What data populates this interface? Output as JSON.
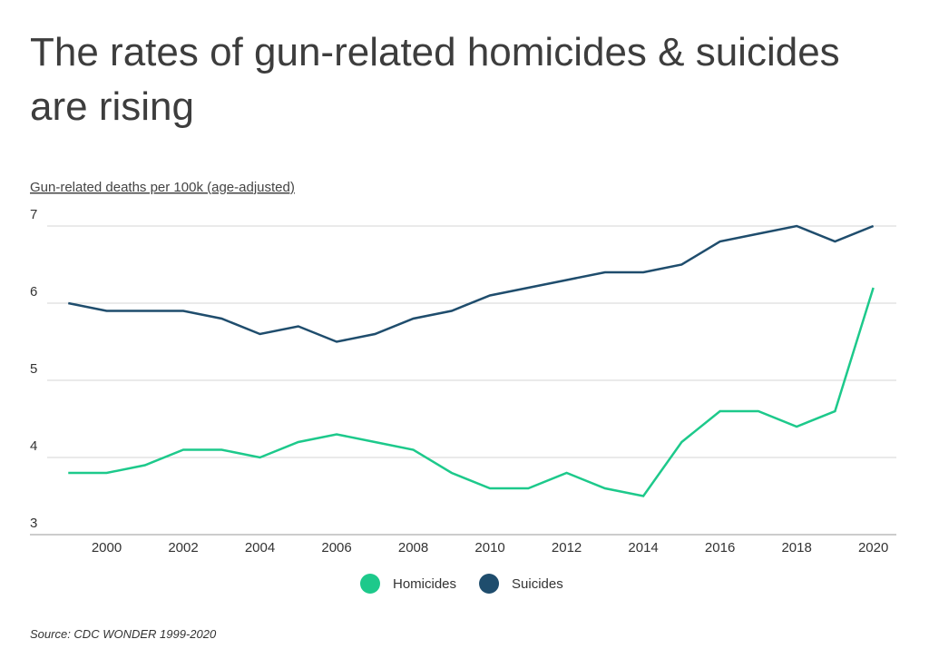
{
  "chart_data": {
    "type": "line",
    "title": "The rates of gun-related homicides & suicides are rising",
    "y_label": "Gun-related deaths per 100k (age-adjusted)",
    "source": "Source:  CDC WONDER 1999-2020",
    "x": [
      1999,
      2000,
      2001,
      2002,
      2003,
      2004,
      2005,
      2006,
      2007,
      2008,
      2009,
      2010,
      2011,
      2012,
      2013,
      2014,
      2015,
      2016,
      2017,
      2018,
      2019,
      2020
    ],
    "series": [
      {
        "name": "Homicides",
        "color": "#1dc98b",
        "values": [
          3.8,
          3.8,
          3.9,
          4.1,
          4.1,
          4.0,
          4.2,
          4.3,
          4.2,
          4.1,
          3.8,
          3.6,
          3.6,
          3.8,
          3.6,
          3.5,
          4.2,
          4.6,
          4.6,
          4.4,
          4.6,
          6.2
        ]
      },
      {
        "name": "Suicides",
        "color": "#1f4d6d",
        "values": [
          6.0,
          5.9,
          5.9,
          5.9,
          5.8,
          5.6,
          5.7,
          5.5,
          5.6,
          5.8,
          5.9,
          6.1,
          6.2,
          6.3,
          6.4,
          6.4,
          6.5,
          6.8,
          6.9,
          7.0,
          6.8,
          7.0
        ]
      }
    ],
    "xlim": [
      1998,
      2020.6
    ],
    "xticks": [
      2000,
      2002,
      2004,
      2006,
      2008,
      2010,
      2012,
      2014,
      2016,
      2018,
      2020
    ],
    "ylim": [
      3,
      7
    ],
    "yticks": [
      3,
      4,
      5,
      6,
      7
    ],
    "grid": true
  }
}
